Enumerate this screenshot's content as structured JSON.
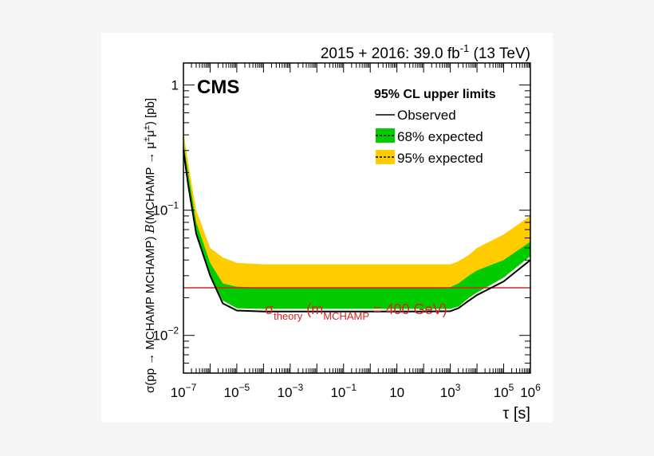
{
  "chart_data": {
    "type": "area",
    "experiment_label": "CMS",
    "lumi_label": {
      "main": "2015 + 2016: 39.0 fb",
      "sup": "-1",
      "energy": " (13 TeV)"
    },
    "xlabel": "τ [s]",
    "ylabel": {
      "pre": "σ(pp → MCHAMP MCHAMP) ",
      "B": "B",
      "post": "(MCHAMP → μ",
      "sup": "±",
      "mid": "μ",
      "sup2": "±",
      "end": ") [pb]"
    },
    "x_log": true,
    "y_log": true,
    "xlim": [
      1e-07,
      1000000.0
    ],
    "ylim": [
      0.005,
      1.5
    ],
    "x_ticks": [
      {
        "value": 1e-07,
        "base": "10",
        "exp": "−7"
      },
      {
        "value": 1e-05,
        "base": "10",
        "exp": "−5"
      },
      {
        "value": 0.001,
        "base": "10",
        "exp": "−3"
      },
      {
        "value": 0.1,
        "base": "10",
        "exp": "−1"
      },
      {
        "value": 10,
        "base": "10",
        "exp": ""
      },
      {
        "value": 1000.0,
        "base": "10",
        "exp": "3"
      },
      {
        "value": 100000.0,
        "base": "10",
        "exp": "5"
      },
      {
        "value": 1000000.0,
        "base": "10",
        "exp": "6"
      }
    ],
    "y_ticks": [
      {
        "value": 1,
        "base": "1",
        "exp": ""
      },
      {
        "value": 0.1,
        "base": "10",
        "exp": "−1"
      },
      {
        "value": 0.01,
        "base": "10",
        "exp": "−2"
      }
    ],
    "legend": {
      "title": "95% CL upper limits",
      "entries": [
        {
          "label": "Observed"
        },
        {
          "label": "68% expected"
        },
        {
          "label": "95% expected"
        }
      ],
      "placement": "top-right"
    },
    "theory_label": {
      "sigma": "σ",
      "sigma_sub": "theory",
      "open": " (m",
      "m_sub": "MCHAMP",
      "rest": " = 400 GeV)"
    },
    "theory_value": 0.024,
    "colors": {
      "band68": "#00cc00",
      "band95": "#ffcc00",
      "observed": "#000000",
      "theory": "#dd2222",
      "theory_text": "#dd2222"
    },
    "series": [
      {
        "name": "Observed",
        "x": [
          1e-07,
          1.5e-07,
          3e-07,
          1e-06,
          3e-06,
          1e-05,
          0.0001,
          0.01,
          1,
          100,
          1000,
          2000,
          5000,
          10000.0,
          100000.0,
          1000000.0
        ],
        "y": [
          0.3,
          0.16,
          0.065,
          0.03,
          0.018,
          0.0158,
          0.0155,
          0.0155,
          0.0155,
          0.0155,
          0.0156,
          0.0165,
          0.019,
          0.021,
          0.027,
          0.04
        ]
      },
      {
        "name": "68% expected",
        "x": [
          1e-07,
          1.5e-07,
          3e-07,
          1e-06,
          3e-06,
          1e-05,
          0.0001,
          0.01,
          1,
          100,
          1000,
          2000,
          5000,
          10000.0,
          100000.0,
          1000000.0
        ],
        "low": [
          0.3,
          0.16,
          0.065,
          0.03,
          0.019,
          0.0165,
          0.0163,
          0.0163,
          0.0163,
          0.0163,
          0.0163,
          0.017,
          0.02,
          0.022,
          0.029,
          0.043
        ],
        "high": [
          0.35,
          0.2,
          0.08,
          0.038,
          0.026,
          0.0245,
          0.024,
          0.024,
          0.024,
          0.024,
          0.0243,
          0.026,
          0.03,
          0.033,
          0.04,
          0.056
        ]
      },
      {
        "name": "95% expected",
        "x": [
          1e-07,
          1.5e-07,
          3e-07,
          1e-06,
          3e-06,
          1e-05,
          0.0001,
          0.01,
          1,
          100,
          1000,
          2000,
          5000,
          10000.0,
          100000.0,
          1000000.0
        ],
        "low": [
          0.3,
          0.16,
          0.065,
          0.03,
          0.019,
          0.0165,
          0.0163,
          0.0163,
          0.0163,
          0.0163,
          0.0163,
          0.017,
          0.02,
          0.022,
          0.029,
          0.043
        ],
        "high": [
          0.42,
          0.24,
          0.1,
          0.05,
          0.042,
          0.038,
          0.037,
          0.037,
          0.037,
          0.037,
          0.037,
          0.039,
          0.044,
          0.05,
          0.064,
          0.09
        ]
      }
    ]
  }
}
